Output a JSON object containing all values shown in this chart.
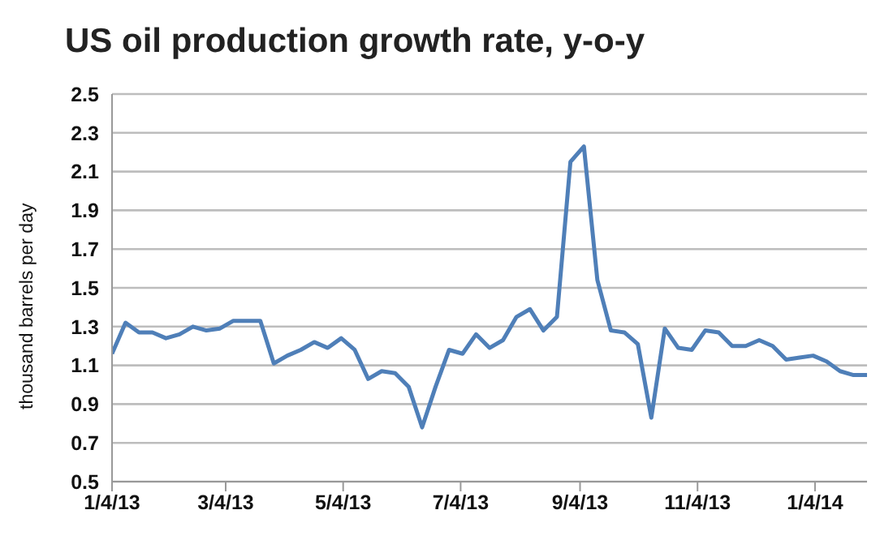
{
  "chart_data": {
    "type": "line",
    "title": "US oil production growth rate, y-o-y",
    "ylabel": "thousand barrels per day",
    "x": [
      "2013-01-04",
      "2013-01-11",
      "2013-01-18",
      "2013-01-25",
      "2013-02-01",
      "2013-02-08",
      "2013-02-15",
      "2013-02-22",
      "2013-03-01",
      "2013-03-08",
      "2013-03-15",
      "2013-03-22",
      "2013-03-29",
      "2013-04-05",
      "2013-04-12",
      "2013-04-19",
      "2013-04-26",
      "2013-05-03",
      "2013-05-10",
      "2013-05-17",
      "2013-05-24",
      "2013-05-31",
      "2013-06-07",
      "2013-06-14",
      "2013-06-21",
      "2013-06-28",
      "2013-07-05",
      "2013-07-12",
      "2013-07-19",
      "2013-07-26",
      "2013-08-02",
      "2013-08-09",
      "2013-08-16",
      "2013-08-23",
      "2013-08-30",
      "2013-09-06",
      "2013-09-13",
      "2013-09-20",
      "2013-09-27",
      "2013-10-04",
      "2013-10-11",
      "2013-10-18",
      "2013-10-25",
      "2013-11-01",
      "2013-11-08",
      "2013-11-15",
      "2013-11-22",
      "2013-11-29",
      "2013-12-06",
      "2013-12-13",
      "2013-12-20",
      "2013-12-27",
      "2014-01-03",
      "2014-01-10",
      "2014-01-17",
      "2014-01-24",
      "2014-01-31"
    ],
    "series": [
      {
        "color": "#4f7fb8",
        "values": [
          1.16,
          1.32,
          1.27,
          1.27,
          1.24,
          1.26,
          1.3,
          1.28,
          1.29,
          1.33,
          1.33,
          1.33,
          1.11,
          1.15,
          1.18,
          1.22,
          1.19,
          1.24,
          1.18,
          1.03,
          1.07,
          1.06,
          0.99,
          0.78,
          0.99,
          1.18,
          1.16,
          1.26,
          1.19,
          1.23,
          1.35,
          1.39,
          1.28,
          1.35,
          2.15,
          2.23,
          1.54,
          1.28,
          1.27,
          1.21,
          0.83,
          1.29,
          1.19,
          1.18,
          1.28,
          1.27,
          1.2,
          1.2,
          1.23,
          1.2,
          1.13,
          1.14,
          1.15,
          1.12,
          1.07,
          1.05,
          1.05
        ]
      }
    ],
    "xlim": [
      "2013-01-04",
      "2014-01-31"
    ],
    "xticks": [
      {
        "value": "2013-01-04",
        "label": "1/4/13"
      },
      {
        "value": "2013-03-04",
        "label": "3/4/13"
      },
      {
        "value": "2013-05-04",
        "label": "5/4/13"
      },
      {
        "value": "2013-07-04",
        "label": "7/4/13"
      },
      {
        "value": "2013-09-04",
        "label": "9/4/13"
      },
      {
        "value": "2013-11-04",
        "label": "11/4/13"
      },
      {
        "value": "2014-01-04",
        "label": "1/4/14"
      }
    ],
    "ylim": [
      0.5,
      2.5
    ],
    "yticks": [
      0.5,
      0.7,
      0.9,
      1.1,
      1.3,
      1.5,
      1.7,
      1.9,
      2.1,
      2.3,
      2.5
    ],
    "grid": "y",
    "legend": false,
    "marker": "none",
    "line_style": "solid"
  }
}
